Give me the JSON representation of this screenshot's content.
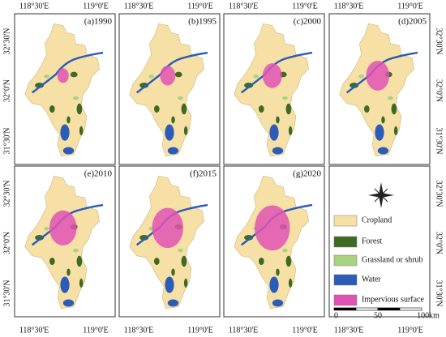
{
  "panels": [
    {
      "label": "(a)1990"
    },
    {
      "label": "(b)1995"
    },
    {
      "label": "(c)2000"
    },
    {
      "label": "(d)2005"
    },
    {
      "label": "(e)2010"
    },
    {
      "label": "(f)2015"
    },
    {
      "label": "(g)2020"
    }
  ],
  "lon_labels": [
    "118°30'E",
    "119°0'E"
  ],
  "lat_labels": [
    "32°30'N",
    "32°0'N",
    "31°30'N"
  ],
  "legend": {
    "items": [
      {
        "name": "Cropland",
        "color": "#f6e0a6"
      },
      {
        "name": "Forest",
        "color": "#3e6b23"
      },
      {
        "name": "Grassland or shrub",
        "color": "#a8d47f"
      },
      {
        "name": "Water",
        "color": "#2b5cb8"
      },
      {
        "name": "Impervious surface",
        "color": "#e053b4"
      }
    ]
  },
  "scale_bar": {
    "labels": [
      "0",
      "50",
      "100km"
    ]
  }
}
